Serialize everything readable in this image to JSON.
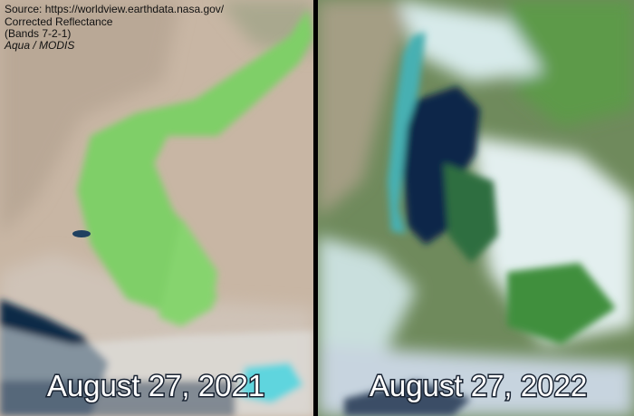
{
  "source": {
    "lines": [
      "Source: https://worldview.earthdata.nasa.gov/",
      "Corrected Reflectance",
      "(Bands 7-2-1)"
    ],
    "satellite": "Aqua / MODIS"
  },
  "panels": [
    {
      "date": "August 27, 2021"
    },
    {
      "date": "August 27, 2022"
    }
  ]
}
